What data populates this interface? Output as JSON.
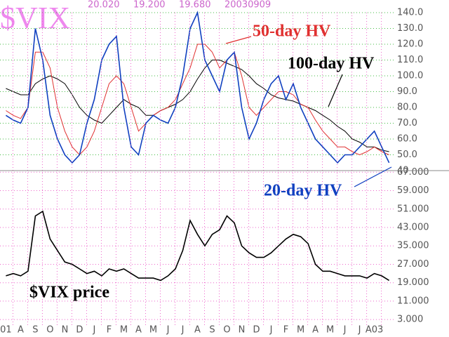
{
  "chart_data": [
    {
      "type": "line",
      "title": "$VIX",
      "quote_fields": [
        "20.020",
        "19.200",
        "19.680",
        "20030909"
      ],
      "x": [
        0,
        0.5,
        1,
        1.5,
        2,
        2.5,
        3,
        3.5,
        4,
        4.5,
        5,
        5.5,
        6,
        6.5,
        7,
        7.5,
        8,
        8.5,
        9,
        9.5,
        10,
        10.5,
        11,
        11.5,
        12,
        12.5,
        13,
        13.5,
        14,
        14.5,
        15,
        15.5,
        16,
        16.5,
        17,
        17.5,
        18,
        18.5,
        19,
        19.5,
        20,
        20.5,
        21,
        21.5,
        22,
        22.5,
        23,
        23.5,
        24,
        24.5,
        25,
        25.5,
        26
      ],
      "series": [
        {
          "name": "100-day HV",
          "color": "#000000",
          "values": [
            92,
            90,
            88,
            88,
            95,
            98,
            100,
            98,
            95,
            88,
            80,
            75,
            72,
            70,
            75,
            80,
            85,
            82,
            80,
            75,
            75,
            78,
            80,
            82,
            85,
            90,
            98,
            105,
            110,
            110,
            108,
            106,
            104,
            100,
            95,
            92,
            88,
            86,
            85,
            84,
            82,
            80,
            78,
            75,
            72,
            68,
            65,
            60,
            58,
            55,
            55,
            53,
            52
          ]
        },
        {
          "name": "50-day HV",
          "color": "#e03030",
          "values": [
            78,
            75,
            73,
            80,
            115,
            115,
            105,
            80,
            65,
            55,
            50,
            55,
            65,
            80,
            95,
            100,
            95,
            80,
            65,
            70,
            75,
            78,
            80,
            85,
            95,
            105,
            120,
            120,
            115,
            105,
            110,
            115,
            100,
            80,
            75,
            80,
            85,
            90,
            90,
            88,
            82,
            80,
            72,
            65,
            60,
            55,
            55,
            52,
            50,
            52,
            55,
            52,
            50
          ]
        },
        {
          "name": "20-day HV",
          "color": "#1040c0",
          "values": [
            75,
            72,
            70,
            80,
            130,
            110,
            75,
            60,
            50,
            45,
            50,
            70,
            85,
            110,
            120,
            125,
            80,
            55,
            50,
            70,
            75,
            72,
            70,
            80,
            100,
            130,
            140,
            110,
            100,
            90,
            110,
            115,
            80,
            60,
            70,
            85,
            95,
            100,
            85,
            95,
            80,
            70,
            60,
            55,
            50,
            45,
            50,
            50,
            55,
            60,
            65,
            55,
            45
          ]
        }
      ],
      "xlim": [
        -0.4,
        26.4
      ],
      "ylim": [
        40,
        140
      ],
      "yticks": [
        {
          "value": 40,
          "label": "40"
        },
        {
          "value": 50,
          "label": "50.0"
        },
        {
          "value": 60,
          "label": "60.0"
        },
        {
          "value": 70,
          "label": "70.0"
        },
        {
          "value": 80,
          "label": "80.0"
        },
        {
          "value": 90,
          "label": "90.0"
        },
        {
          "value": 100,
          "label": "100.0"
        },
        {
          "value": 110,
          "label": "110.0"
        },
        {
          "value": 120,
          "label": "120.0"
        },
        {
          "value": 130,
          "label": "130.0"
        },
        {
          "value": 140,
          "label": "140.0"
        }
      ],
      "grid": true
    },
    {
      "type": "line",
      "annotation": "$VIX price",
      "x": [
        0,
        0.5,
        1,
        1.5,
        2,
        2.5,
        3,
        3.5,
        4,
        4.5,
        5,
        5.5,
        6,
        6.5,
        7,
        7.5,
        8,
        8.5,
        9,
        9.5,
        10,
        10.5,
        11,
        11.5,
        12,
        12.5,
        13,
        13.5,
        14,
        14.5,
        15,
        15.5,
        16,
        16.5,
        17,
        17.5,
        18,
        18.5,
        19,
        19.5,
        20,
        20.5,
        21,
        21.5,
        22,
        22.5,
        23,
        23.5,
        24,
        24.5,
        25,
        25.5,
        26
      ],
      "series": [
        {
          "name": "$VIX price",
          "color": "#000000",
          "values": [
            22,
            23,
            22,
            24,
            48,
            50,
            38,
            33,
            28,
            27,
            25,
            23,
            24,
            22,
            25,
            24,
            25,
            23,
            21,
            21,
            21,
            20,
            22,
            25,
            33,
            46,
            40,
            35,
            40,
            42,
            48,
            45,
            35,
            32,
            30,
            30,
            32,
            35,
            38,
            40,
            39,
            36,
            27,
            24,
            24,
            23,
            22,
            22,
            22,
            21,
            23,
            22,
            20
          ]
        }
      ],
      "xlim": [
        -0.4,
        26.4
      ],
      "ylim": [
        0,
        68
      ],
      "yticks": [
        {
          "value": 3,
          "label": "3.000"
        },
        {
          "value": 11,
          "label": "11.000"
        },
        {
          "value": 19,
          "label": "19.000"
        },
        {
          "value": 27,
          "label": "27.000"
        },
        {
          "value": 35,
          "label": "35.000"
        },
        {
          "value": 43,
          "label": "43.000"
        },
        {
          "value": 51,
          "label": "51.000"
        },
        {
          "value": 59,
          "label": "59.000"
        },
        {
          "value": 67,
          "label": "67.000"
        }
      ],
      "xticks": [
        {
          "value": 0,
          "label": "01"
        },
        {
          "value": 1,
          "label": "A"
        },
        {
          "value": 2,
          "label": "S"
        },
        {
          "value": 3,
          "label": "O"
        },
        {
          "value": 4,
          "label": "N"
        },
        {
          "value": 5,
          "label": "D"
        },
        {
          "value": 6,
          "label": "J"
        },
        {
          "value": 7,
          "label": "F"
        },
        {
          "value": 8,
          "label": "M"
        },
        {
          "value": 9,
          "label": "A"
        },
        {
          "value": 10,
          "label": "M"
        },
        {
          "value": 11,
          "label": "J"
        },
        {
          "value": 12,
          "label": "J"
        },
        {
          "value": 13,
          "label": "A"
        },
        {
          "value": 14,
          "label": "S"
        },
        {
          "value": 15,
          "label": "O"
        },
        {
          "value": 16,
          "label": "N"
        },
        {
          "value": 17,
          "label": "D"
        },
        {
          "value": 18,
          "label": "J"
        },
        {
          "value": 19,
          "label": "F"
        },
        {
          "value": 20,
          "label": "M"
        },
        {
          "value": 21,
          "label": "A"
        },
        {
          "value": 22,
          "label": "M"
        },
        {
          "value": 23,
          "label": "J"
        },
        {
          "value": 24,
          "label": "J"
        },
        {
          "value": 25,
          "label": "A03"
        }
      ],
      "grid": true
    }
  ]
}
